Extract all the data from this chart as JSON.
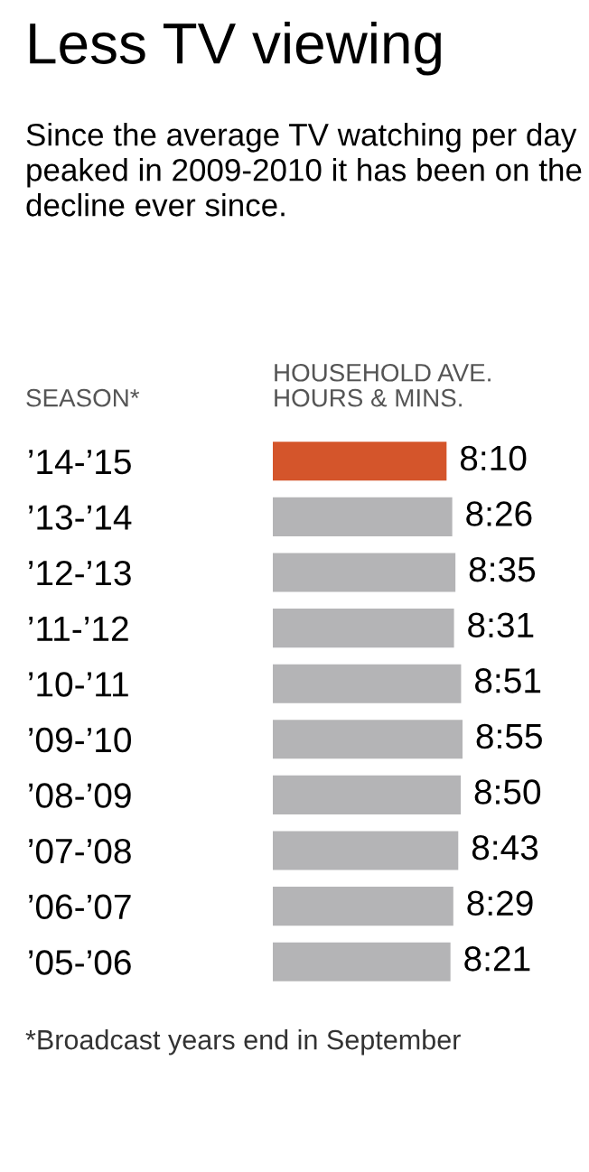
{
  "chart_data": {
    "type": "bar",
    "orientation": "horizontal",
    "title": "Less TV viewing",
    "subtitle": "Since the average TV watching per day peaked in 2009-2010 it has been on the decline ever since.",
    "ylabel": "SEASON*",
    "xlabel": "HOUSEHOLD AVE.\nHOURS & MINS.",
    "categories": [
      "’14-’15",
      "’13-’14",
      "’12-’13",
      "’11-’12",
      "’10-’11",
      "’09-’10",
      "’08-’09",
      "’07-’08",
      "’06-’07",
      "’05-’06"
    ],
    "values": [
      8.1667,
      8.4333,
      8.5833,
      8.5167,
      8.85,
      8.9167,
      8.8333,
      8.7167,
      8.4833,
      8.35
    ],
    "value_labels": [
      "8:10",
      "8:26",
      "8:35",
      "8:31",
      "8:51",
      "8:55",
      "8:50",
      "8:43",
      "8:29",
      "8:21"
    ],
    "colors": [
      "#d4552b",
      "#b4b4b6",
      "#b4b4b6",
      "#b4b4b6",
      "#b4b4b6",
      "#b4b4b6",
      "#b4b4b6",
      "#b4b4b6",
      "#b4b4b6",
      "#b4b4b6"
    ],
    "annotations": [
      "*Broadcast years end in September"
    ],
    "grid": false,
    "legend": false
  }
}
